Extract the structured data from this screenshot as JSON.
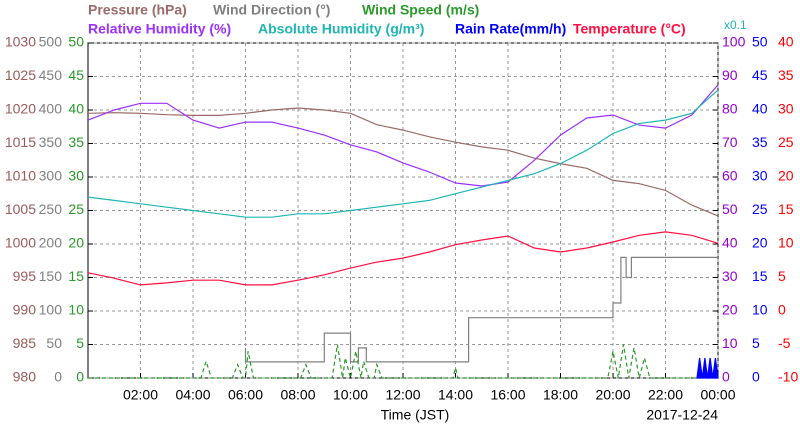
{
  "chart_data": {
    "type": "line",
    "xlabel": "Time (JST)",
    "date": "2017-12-24",
    "scale_note": "x0.1",
    "scale_note_color": "#1fb5b5",
    "grid": true,
    "xlim": [
      0,
      24
    ],
    "xticks": [
      {
        "value": 2,
        "label": "02:00"
      },
      {
        "value": 4,
        "label": "04:00"
      },
      {
        "value": 6,
        "label": "06:00"
      },
      {
        "value": 8,
        "label": "08:00"
      },
      {
        "value": 10,
        "label": "10:00"
      },
      {
        "value": 12,
        "label": "12:00"
      },
      {
        "value": 14,
        "label": "14:00"
      },
      {
        "value": 16,
        "label": "16:00"
      },
      {
        "value": 18,
        "label": "18:00"
      },
      {
        "value": 20,
        "label": "20:00"
      },
      {
        "value": 22,
        "label": "22:00"
      },
      {
        "value": 24,
        "label": "00:00"
      }
    ],
    "axes": [
      {
        "side": "left",
        "color": "#9b5a5a",
        "ylim": [
          980,
          1030
        ],
        "yticks": [
          980,
          985,
          990,
          995,
          1000,
          1005,
          1010,
          1015,
          1020,
          1025,
          1030
        ],
        "series": [
          {
            "name": "Pressure (hPa)",
            "color": "#9b6a6a",
            "style": "line",
            "x": [
              0,
              1,
              2,
              3,
              4,
              5,
              6,
              7,
              8,
              9,
              10,
              11,
              12,
              13,
              14,
              15,
              16,
              17,
              18,
              19,
              20,
              21,
              22,
              23,
              24
            ],
            "values": [
              1019.5,
              1019.6,
              1019.5,
              1019.3,
              1019.2,
              1019.2,
              1019.5,
              1020,
              1020.3,
              1020,
              1019.5,
              1017.8,
              1017,
              1016,
              1015.2,
              1014.5,
              1014,
              1012.8,
              1012,
              1011.3,
              1009.5,
              1009,
              1008,
              1005.8,
              1004.2
            ]
          }
        ]
      },
      {
        "side": "left",
        "color": "#808080",
        "ylim": [
          0,
          500
        ],
        "yticks": [
          0,
          50,
          100,
          150,
          200,
          250,
          300,
          350,
          400,
          450,
          500
        ],
        "series": [
          {
            "name": "Wind Direction (°)",
            "color": "#808080",
            "style": "line",
            "x": [
              6,
              6,
              9,
              9,
              10,
              10,
              10.3,
              10.3,
              10.6,
              10.6,
              14.5,
              14.5,
              20,
              20,
              20.3,
              20.3,
              20.5,
              20.5,
              20.7,
              20.7,
              24
            ],
            "values": [
              45,
              24,
              24,
              67,
              67,
              24,
              24,
              45,
              45,
              24,
              24,
              90,
              90,
              112,
              112,
              180,
              180,
              150,
              150,
              180,
              180
            ]
          }
        ]
      },
      {
        "side": "left",
        "color": "#2a9a2a",
        "ylim": [
          0,
          50
        ],
        "yticks": [
          0,
          5,
          10,
          15,
          20,
          25,
          30,
          35,
          40,
          45,
          50
        ],
        "series": [
          {
            "name": "Wind Speed (m/s)",
            "color": "#2a9a2a",
            "style": "dashed",
            "x": [
              0,
              4.3,
              4.5,
              4.7,
              5.5,
              5.7,
              5.9,
              6.0,
              6.1,
              6.3,
              8.1,
              8.3,
              8.5,
              9.3,
              9.5,
              9.7,
              9.8,
              10.0,
              10.2,
              10.4,
              10.5,
              10.7,
              10.9,
              11,
              11.2,
              13.9,
              14,
              14.1,
              19.8,
              20,
              20.2,
              20.4,
              20.6,
              20.8,
              21,
              21.2,
              21.4,
              24
            ],
            "values": [
              0,
              0,
              2.5,
              0,
              0,
              2,
              0,
              0,
              4,
              0,
              0,
              2,
              0,
              0,
              5,
              0,
              3,
              0,
              4,
              0,
              2.5,
              0,
              0,
              2,
              0,
              0,
              1.5,
              0,
              0,
              4,
              0,
              5,
              0,
              4.5,
              0,
              3,
              0,
              0
            ]
          }
        ]
      },
      {
        "side": "right",
        "color": "#9400d3",
        "ylim": [
          0,
          100
        ],
        "yticks": [
          0,
          10,
          20,
          30,
          40,
          50,
          60,
          70,
          80,
          90,
          100
        ],
        "series": [
          {
            "name": "Relative Humidity (%)",
            "color": "#9b30ff",
            "style": "line",
            "x": [
              0,
              1,
              2,
              3,
              4,
              5,
              6,
              7,
              8,
              9,
              10,
              11,
              12,
              13,
              14,
              15,
              16,
              17,
              18,
              19,
              20,
              21,
              22,
              23,
              24
            ],
            "values": [
              77,
              80,
              82,
              82,
              77,
              74.6,
              76.4,
              76.4,
              74.6,
              72.5,
              69.6,
              67.5,
              64.2,
              61.5,
              58.2,
              57.3,
              58.5,
              65,
              72.5,
              77.6,
              78.5,
              75.5,
              74.6,
              78.5,
              87.5
            ]
          },
          {
            "name": "Absolute Humidity (g/m³)",
            "color": "#1fb5b5",
            "style": "line",
            "x": [
              0,
              1,
              2,
              3,
              4,
              5,
              6,
              7,
              8,
              9,
              10,
              11,
              12,
              13,
              14,
              15,
              16,
              17,
              18,
              19,
              20,
              21,
              22,
              23,
              24
            ],
            "values": [
              54,
              53,
              52,
              51,
              50,
              49,
              48,
              48,
              49,
              49,
              50,
              51,
              52,
              53,
              55,
              57,
              59,
              61,
              64,
              68,
              73,
              76,
              77,
              79,
              86
            ]
          }
        ]
      },
      {
        "side": "right",
        "color": "#0000ff",
        "ylim": [
          0,
          50
        ],
        "yticks": [
          0,
          5,
          10,
          15,
          20,
          25,
          30,
          35,
          40,
          45,
          50
        ],
        "series": [
          {
            "name": "Rain Rate(mm/h)",
            "color": "#0000ff",
            "style": "area",
            "x": [
              23.2,
              23.3,
              23.4,
              23.5,
              23.6,
              23.7,
              23.8,
              23.9,
              24
            ],
            "values": [
              0,
              3,
              0,
              3,
              0,
              3,
              0,
              3,
              0
            ]
          }
        ]
      },
      {
        "side": "right",
        "color": "#ff0000",
        "ylim": [
          -10,
          40
        ],
        "yticks": [
          -10,
          -5,
          0,
          5,
          10,
          15,
          20,
          25,
          30,
          35,
          40
        ],
        "series": [
          {
            "name": "Temperature (°C)",
            "color": "#ff1040",
            "style": "line",
            "x": [
              0,
              1,
              2,
              3,
              4,
              5,
              6,
              7,
              8,
              9,
              10,
              11,
              12,
              13,
              14,
              15,
              16,
              17,
              18,
              19,
              20,
              21,
              22,
              23,
              24
            ],
            "values": [
              5.7,
              4.9,
              3.9,
              4.2,
              4.6,
              4.6,
              3.9,
              3.9,
              4.6,
              5.4,
              6.4,
              7.3,
              7.9,
              8.8,
              9.9,
              10.6,
              11.2,
              9.4,
              8.8,
              9.4,
              10.3,
              11.3,
              11.8,
              11.3,
              10.1
            ]
          }
        ]
      }
    ]
  }
}
